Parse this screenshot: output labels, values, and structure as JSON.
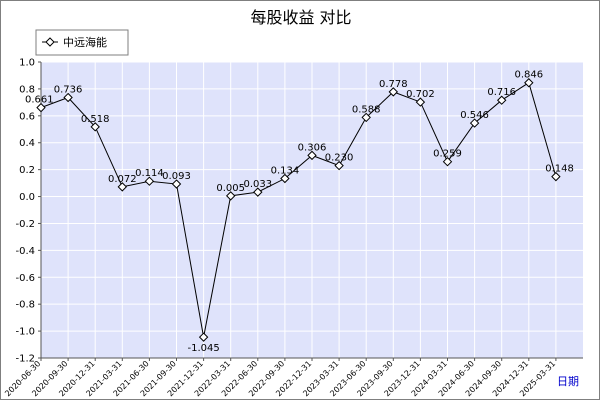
{
  "chart_data": {
    "type": "line",
    "title": "每股收益  对比",
    "xlabel": "日期",
    "ylabel": "",
    "ylim": [
      -1.2,
      1.0
    ],
    "yticks": [
      "1.0",
      "0.8",
      "0.6",
      "0.4",
      "0.2",
      "0.0",
      "-0.2",
      "-0.4",
      "-0.6",
      "-0.8",
      "-1.0",
      "-1.2"
    ],
    "grid": true,
    "legend_position": "top-left",
    "categories": [
      "2020-06-30",
      "2020-09-30",
      "2020-12-31",
      "2021-03-31",
      "2021-06-30",
      "2021-09-30",
      "2021-12-31",
      "2022-03-31",
      "2022-06-30",
      "2022-09-30",
      "2022-12-31",
      "2023-03-31",
      "2023-06-30",
      "2023-09-30",
      "2023-12-31",
      "2024-03-31",
      "2024-06-30",
      "2024-09-30",
      "2024-12-31",
      "2025-03-31"
    ],
    "series": [
      {
        "name": "中远海能",
        "color": "#000000",
        "values": [
          0.661,
          0.736,
          0.518,
          0.072,
          0.114,
          0.093,
          -1.045,
          0.005,
          0.033,
          0.134,
          0.306,
          0.23,
          0.588,
          0.778,
          0.702,
          0.259,
          0.546,
          0.716,
          0.846,
          0.148
        ],
        "labels": [
          "0.661",
          "0.736",
          "0.518",
          "0.072",
          "0.114",
          "0.093",
          "-1.045",
          "0.005",
          "0.033",
          "0.134",
          "0.306",
          "0.230",
          "0.588",
          "0.778",
          "0.702",
          "0.259",
          "0.546",
          "0.716",
          "0.846",
          "0.148"
        ]
      }
    ]
  },
  "colors": {
    "plot_background": "#dfe3fb",
    "grid": "#ffffff",
    "axis": "#555555",
    "xlabel": "#0000cc"
  }
}
